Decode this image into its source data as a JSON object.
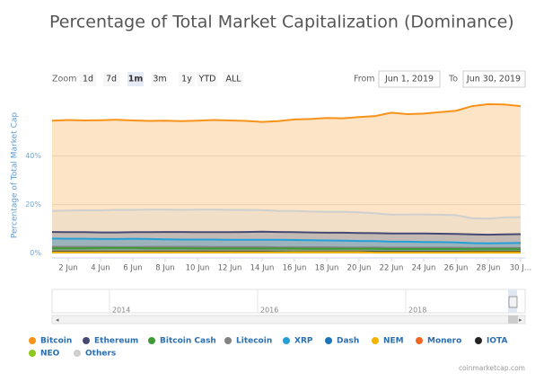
{
  "chart_data": {
    "type": "area",
    "title": "Percentage of Total Market Capitalization (Dominance)",
    "y_label": "Percentage of Total Market Cap",
    "categories": [
      null,
      "2 Jun",
      null,
      "4 Jun",
      null,
      "6 Jun",
      null,
      "8 Jun",
      null,
      "10 Jun",
      null,
      "12 Jun",
      null,
      "14 Jun",
      null,
      "16 Jun",
      null,
      "18 Jun",
      null,
      "20 Jun",
      null,
      "22 Jun",
      null,
      "24 Jun",
      null,
      "26 Jun",
      null,
      "28 Jun",
      null,
      "30 J…"
    ],
    "ylim": [
      -2,
      62
    ],
    "yticks": [
      {
        "value": 0,
        "label": "0%"
      },
      {
        "value": 20,
        "label": "20%"
      },
      {
        "value": 40,
        "label": "40%"
      }
    ],
    "grid": true,
    "series": [
      {
        "name": "Bitcoin",
        "color": "#f7931a",
        "values": [
          54.5,
          54.8,
          54.6,
          54.7,
          54.9,
          54.6,
          54.4,
          54.5,
          54.3,
          54.5,
          54.8,
          54.6,
          54.4,
          54.0,
          54.3,
          55.0,
          55.2,
          55.6,
          55.5,
          56.0,
          56.4,
          57.8,
          57.2,
          57.4,
          58.0,
          58.6,
          60.5,
          61.3,
          61.2,
          60.5
        ]
      },
      {
        "name": "Ethereum",
        "color": "#454a75",
        "values": [
          8.7,
          8.6,
          8.6,
          8.5,
          8.5,
          8.6,
          8.6,
          8.7,
          8.7,
          8.6,
          8.6,
          8.6,
          8.7,
          8.8,
          8.7,
          8.6,
          8.5,
          8.4,
          8.4,
          8.3,
          8.2,
          8.1,
          8.1,
          8.1,
          8.0,
          7.9,
          7.7,
          7.6,
          7.7,
          7.8
        ]
      },
      {
        "name": "Bitcoin Cash",
        "color": "#3e9b34",
        "values": [
          2.0,
          2.0,
          2.0,
          2.1,
          2.1,
          2.1,
          2.0,
          2.0,
          2.0,
          1.9,
          1.9,
          1.9,
          1.9,
          1.9,
          1.9,
          1.9,
          1.8,
          1.8,
          1.8,
          1.8,
          1.8,
          1.7,
          1.7,
          1.7,
          1.7,
          1.7,
          1.6,
          1.6,
          1.6,
          1.6
        ]
      },
      {
        "name": "Litecoin",
        "color": "#838383",
        "values": [
          2.6,
          2.6,
          2.6,
          2.6,
          2.5,
          2.5,
          2.6,
          2.6,
          2.6,
          2.6,
          2.5,
          2.5,
          2.5,
          2.5,
          2.4,
          2.4,
          2.4,
          2.4,
          2.3,
          2.3,
          2.3,
          2.2,
          2.2,
          2.2,
          2.2,
          2.2,
          2.1,
          2.1,
          2.1,
          2.1
        ]
      },
      {
        "name": "XRP",
        "color": "#23a0d8",
        "values": [
          6.0,
          5.9,
          5.9,
          5.8,
          5.8,
          5.9,
          5.8,
          5.7,
          5.6,
          5.6,
          5.6,
          5.5,
          5.5,
          5.5,
          5.5,
          5.4,
          5.3,
          5.2,
          5.1,
          5.0,
          4.9,
          4.7,
          4.7,
          4.6,
          4.5,
          4.4,
          4.1,
          4.0,
          4.1,
          4.2
        ]
      },
      {
        "name": "Dash",
        "color": "#1c75bc",
        "values": [
          0.6,
          0.6,
          0.6,
          0.6,
          0.6,
          0.6,
          0.6,
          0.6,
          0.6,
          0.6,
          0.6,
          0.6,
          0.6,
          0.6,
          0.6,
          0.5,
          0.5,
          0.5,
          0.5,
          0.5,
          0.5,
          0.5,
          0.5,
          0.5,
          0.5,
          0.5,
          0.4,
          0.4,
          0.4,
          0.4
        ]
      },
      {
        "name": "NEM",
        "color": "#f5b400",
        "values": [
          0.3,
          0.3,
          0.3,
          0.3,
          0.3,
          0.3,
          0.3,
          0.3,
          0.3,
          0.3,
          0.3,
          0.3,
          0.3,
          0.3,
          0.3,
          0.3,
          0.3,
          0.3,
          0.3,
          0.3,
          0.2,
          0.2,
          0.2,
          0.2,
          0.2,
          0.2,
          0.2,
          0.2,
          0.2,
          0.2
        ]
      },
      {
        "name": "Monero",
        "color": "#f26822",
        "values": [
          0.7,
          0.7,
          0.7,
          0.7,
          0.7,
          0.7,
          0.7,
          0.7,
          0.7,
          0.7,
          0.7,
          0.7,
          0.7,
          0.7,
          0.7,
          0.7,
          0.7,
          0.7,
          0.7,
          0.7,
          0.6,
          0.6,
          0.6,
          0.6,
          0.6,
          0.6,
          0.6,
          0.6,
          0.6,
          0.6
        ]
      },
      {
        "name": "IOTA",
        "color": "#242424",
        "values": [
          0.5,
          0.5,
          0.5,
          0.5,
          0.5,
          0.5,
          0.5,
          0.5,
          0.5,
          0.5,
          0.5,
          0.5,
          0.5,
          0.5,
          0.4,
          0.4,
          0.4,
          0.4,
          0.4,
          0.4,
          0.4,
          0.4,
          0.4,
          0.4,
          0.4,
          0.4,
          0.4,
          0.4,
          0.4,
          0.4
        ]
      },
      {
        "name": "NEO",
        "color": "#8ec920",
        "values": [
          0.6,
          0.6,
          0.6,
          0.6,
          0.6,
          0.6,
          0.6,
          0.6,
          0.6,
          0.6,
          0.6,
          0.6,
          0.6,
          0.6,
          0.6,
          0.6,
          0.5,
          0.5,
          0.5,
          0.5,
          0.5,
          0.5,
          0.5,
          0.5,
          0.5,
          0.5,
          0.5,
          0.5,
          0.5,
          0.5
        ]
      },
      {
        "name": "Others",
        "color": "#cfcfcf",
        "values": [
          17.4,
          17.5,
          17.6,
          17.6,
          17.8,
          17.8,
          17.9,
          17.9,
          17.8,
          17.9,
          17.9,
          17.8,
          17.8,
          17.7,
          17.4,
          17.3,
          17.1,
          17.0,
          17.0,
          16.8,
          16.4,
          15.8,
          15.9,
          15.9,
          15.8,
          15.6,
          14.3,
          14.2,
          14.7,
          14.8
        ]
      }
    ]
  },
  "controls": {
    "zoom_label": "Zoom",
    "zoom_buttons": [
      "1d",
      "7d",
      "1m",
      "3m",
      "1y",
      "YTD",
      "ALL"
    ],
    "selected": "1m",
    "from_label": "From",
    "from": "Jun 1, 2019",
    "to_label": "To",
    "to": "Jun 30, 2019"
  },
  "navigator": {
    "years": [
      "2014",
      "2016",
      "2018"
    ]
  },
  "credit": "coinmarketcap.com"
}
